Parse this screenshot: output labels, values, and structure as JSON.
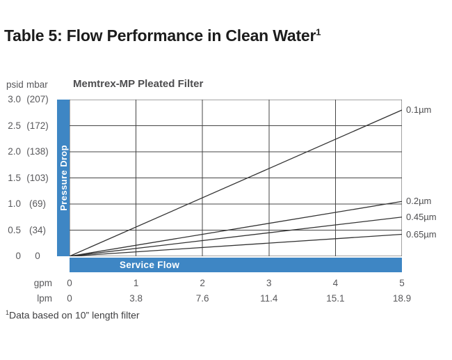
{
  "title": {
    "text": "Table 5: Flow Performance in Clean Water",
    "superscript": "1"
  },
  "chart": {
    "title": "Memtrex-MP Pleated Filter",
    "unit_psid": "psid",
    "unit_mbar": "mbar",
    "y_axis_label": "Pressure Drop",
    "x_axis_label": "Service Flow",
    "y_ticks": [
      {
        "psid": "3.0",
        "mbar": "(207)"
      },
      {
        "psid": "2.5",
        "mbar": "(172)"
      },
      {
        "psid": "2.0",
        "mbar": "(138)"
      },
      {
        "psid": "1.5",
        "mbar": "(103)"
      },
      {
        "psid": "1.0",
        "mbar": "(69)"
      },
      {
        "psid": "0.5",
        "mbar": "(34)"
      },
      {
        "psid": "0",
        "mbar": "0"
      }
    ],
    "x_rows": [
      {
        "label": "gpm",
        "values": [
          "0",
          "1",
          "2",
          "3",
          "4",
          "5"
        ]
      },
      {
        "label": "lpm",
        "values": [
          "0",
          "3.8",
          "7.6",
          "11.4",
          "15.1",
          "18.9"
        ]
      }
    ]
  },
  "chart_data": {
    "type": "line",
    "title": "Memtrex-MP Pleated Filter",
    "xlabel": "Service Flow",
    "ylabel": "Pressure Drop",
    "x_unit_primary": "gpm",
    "x_unit_secondary": "lpm",
    "y_unit_primary": "psid",
    "y_unit_secondary": "mbar",
    "xlim": [
      0,
      5
    ],
    "ylim": [
      0,
      3.0
    ],
    "grid": true,
    "legend_position": "right-of-line-ends",
    "x": [
      0,
      5
    ],
    "series": [
      {
        "name": "0.1µm",
        "values": [
          0,
          2.8
        ]
      },
      {
        "name": "0.2µm",
        "values": [
          0,
          1.05
        ]
      },
      {
        "name": "0.45µm",
        "values": [
          0,
          0.75
        ]
      },
      {
        "name": "0.65µm",
        "values": [
          0,
          0.42
        ]
      }
    ],
    "x_ticks_gpm": [
      0,
      1,
      2,
      3,
      4,
      5
    ],
    "x_ticks_lpm": [
      0,
      3.8,
      7.6,
      11.4,
      15.1,
      18.9
    ],
    "y_ticks_psid": [
      3.0,
      2.5,
      2.0,
      1.5,
      1.0,
      0.5,
      0
    ],
    "y_ticks_mbar": [
      207,
      172,
      138,
      103,
      69,
      34,
      0
    ]
  },
  "footnote": {
    "superscript": "1",
    "text": "Data based on 10” length filter"
  },
  "colors": {
    "accent_blue": "#3e86c4",
    "grid_line": "#444444",
    "data_line": "#333333",
    "text_gray": "#58585b"
  }
}
